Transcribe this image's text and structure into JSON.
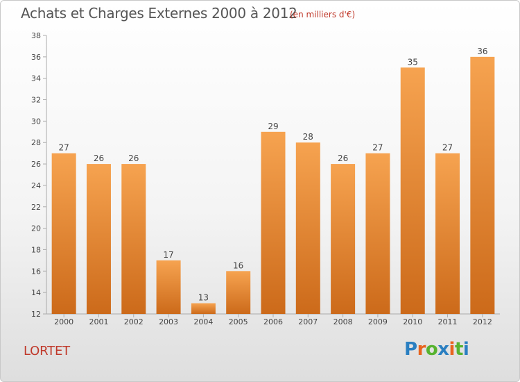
{
  "header": {
    "title": "Achats et Charges Externes 2000 à 2012",
    "unit": "(en milliers d'€)"
  },
  "footer": {
    "city": "LORTET",
    "brand": "Proxiti"
  },
  "colors": {
    "bar_top": "#f6a350",
    "bar_bottom": "#cc6a1a",
    "title": "#555555",
    "accent_red": "#c0392b",
    "brand_letters": [
      "#2a7fc1",
      "#e8641e",
      "#57b330",
      "#2a7fc1",
      "#e8641e",
      "#57b330",
      "#2a7fc1"
    ]
  },
  "chart_data": {
    "type": "bar",
    "categories": [
      "2000",
      "2001",
      "2002",
      "2003",
      "2004",
      "2005",
      "2006",
      "2007",
      "2008",
      "2009",
      "2010",
      "2011",
      "2012"
    ],
    "values": [
      27,
      26,
      26,
      17,
      13,
      16,
      29,
      28,
      26,
      27,
      35,
      27,
      36
    ],
    "data_labels": [
      "27",
      "26",
      "26",
      "17",
      "13",
      "16",
      "29",
      "28",
      "26",
      "27",
      "35",
      "27",
      "36"
    ],
    "title": "Achats et Charges Externes 2000 à 2012",
    "ylabel": "",
    "xlabel": "",
    "ylim": [
      12,
      38
    ],
    "yticks": [
      "12",
      "14",
      "16",
      "18",
      "20",
      "22",
      "24",
      "26",
      "28",
      "30",
      "32",
      "34",
      "36",
      "38"
    ],
    "grid": false,
    "legend": "none"
  }
}
